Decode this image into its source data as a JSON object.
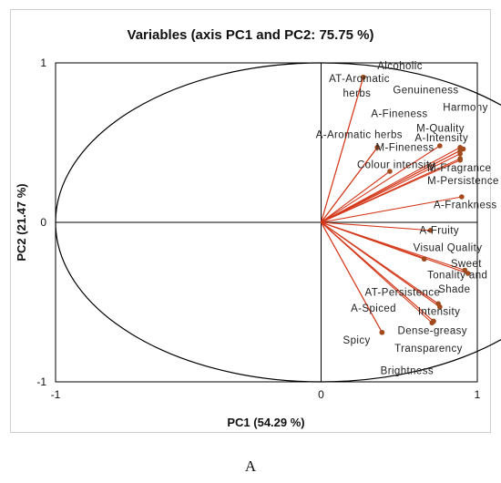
{
  "panel_label": "A",
  "colors": {
    "vector": "#d43a1c",
    "point": "#a14b1e",
    "axis": "#000000",
    "circle": "#000000"
  },
  "chart_data": {
    "type": "scatter",
    "title": "Variables (axis PC1 and PC2: 75.75 %)",
    "xlabel": "PC1 (54.29 %)",
    "ylabel": "PC2 (21.47 %)",
    "xlim": [
      -1,
      1
    ],
    "ylim": [
      -1,
      1
    ],
    "xticks": [
      "-1",
      "0",
      "1"
    ],
    "yticks": [
      "-1",
      "0",
      "1"
    ],
    "correlation_circle": true,
    "grid": false,
    "points": [
      {
        "label": "Alcoholic",
        "x": 0.27,
        "y": 0.91
      },
      {
        "label": "AT-Aromatic herbs",
        "x": 0.27,
        "y": 0.91
      },
      {
        "label": "Genuineness",
        "x": 0.89,
        "y": 0.47
      },
      {
        "label": "Harmony",
        "x": 0.91,
        "y": 0.46
      },
      {
        "label": "A-Fineness",
        "x": 0.89,
        "y": 0.43
      },
      {
        "label": "M-Quality",
        "x": 0.89,
        "y": 0.45
      },
      {
        "label": "A-Intensity",
        "x": 0.76,
        "y": 0.48
      },
      {
        "label": "A-Aromatic herbs",
        "x": 0.36,
        "y": 0.47
      },
      {
        "label": "M-Fineness",
        "x": 0.36,
        "y": 0.47
      },
      {
        "label": "Colour intensity",
        "x": 0.44,
        "y": 0.32
      },
      {
        "label": "M-Fragrance",
        "x": 0.89,
        "y": 0.4
      },
      {
        "label": "M-Persistence",
        "x": 0.89,
        "y": 0.39
      },
      {
        "label": "A-Frankness",
        "x": 0.9,
        "y": 0.16
      },
      {
        "label": "A-Fruity",
        "x": 0.7,
        "y": -0.05
      },
      {
        "label": "Visual Quality",
        "x": 0.66,
        "y": -0.23
      },
      {
        "label": "Sweet",
        "x": 0.92,
        "y": -0.3
      },
      {
        "label": "Tonality and Shade",
        "x": 0.94,
        "y": -0.32
      },
      {
        "label": "Intensity",
        "x": 0.76,
        "y": -0.53
      },
      {
        "label": "AT-Persistence",
        "x": 0.75,
        "y": -0.51
      },
      {
        "label": "A-Spiced",
        "x": 0.72,
        "y": -0.62
      },
      {
        "label": "Dense-greasy",
        "x": 0.71,
        "y": -0.63
      },
      {
        "label": "Transparency",
        "x": 0.72,
        "y": -0.62
      },
      {
        "label": "Spicy",
        "x": 0.39,
        "y": -0.69
      },
      {
        "label": "Brightness",
        "x": 0.39,
        "y": -0.69
      }
    ],
    "labels": [
      {
        "text": "Alcoholic",
        "x": 0.36,
        "y": 0.96
      },
      {
        "text": "AT-Aromatic",
        "x": 0.05,
        "y": 0.88
      },
      {
        "text": "herbs",
        "x": 0.14,
        "y": 0.79
      },
      {
        "text": "Genuineness",
        "x": 0.46,
        "y": 0.81
      },
      {
        "text": "Harmony",
        "x": 0.78,
        "y": 0.7
      },
      {
        "text": "A-Fineness",
        "x": 0.32,
        "y": 0.66
      },
      {
        "text": "M-Quality",
        "x": 0.61,
        "y": 0.57
      },
      {
        "text": "A-Intensity",
        "x": 0.6,
        "y": 0.51
      },
      {
        "text": "A-Aromatic herbs",
        "x": -0.02,
        "y": 0.53
      },
      {
        "text": "M-Fineness",
        "x": 0.35,
        "y": 0.45
      },
      {
        "text": "Colour intensity",
        "x": 0.23,
        "y": 0.34
      },
      {
        "text": "M-Fragrance",
        "x": 0.68,
        "y": 0.32
      },
      {
        "text": "M-Persistence",
        "x": 0.68,
        "y": 0.24
      },
      {
        "text": "A-Frankness",
        "x": 0.72,
        "y": 0.09
      },
      {
        "text": "A-Fruity",
        "x": 0.63,
        "y": -0.07
      },
      {
        "text": "Visual Quality",
        "x": 0.59,
        "y": -0.18
      },
      {
        "text": "Sweet",
        "x": 0.83,
        "y": -0.28
      },
      {
        "text": "Tonality and",
        "x": 0.68,
        "y": -0.35
      },
      {
        "text": "Shade",
        "x": 0.75,
        "y": -0.44
      },
      {
        "text": "Intensity",
        "x": 0.62,
        "y": -0.58
      },
      {
        "text": "AT-Persistence",
        "x": 0.28,
        "y": -0.46
      },
      {
        "text": "A-Spiced",
        "x": 0.19,
        "y": -0.56
      },
      {
        "text": "Dense-greasy",
        "x": 0.49,
        "y": -0.7
      },
      {
        "text": "Transparency",
        "x": 0.47,
        "y": -0.81
      },
      {
        "text": "Spicy",
        "x": 0.14,
        "y": -0.76
      },
      {
        "text": "Brightness",
        "x": 0.38,
        "y": -0.95
      }
    ]
  }
}
